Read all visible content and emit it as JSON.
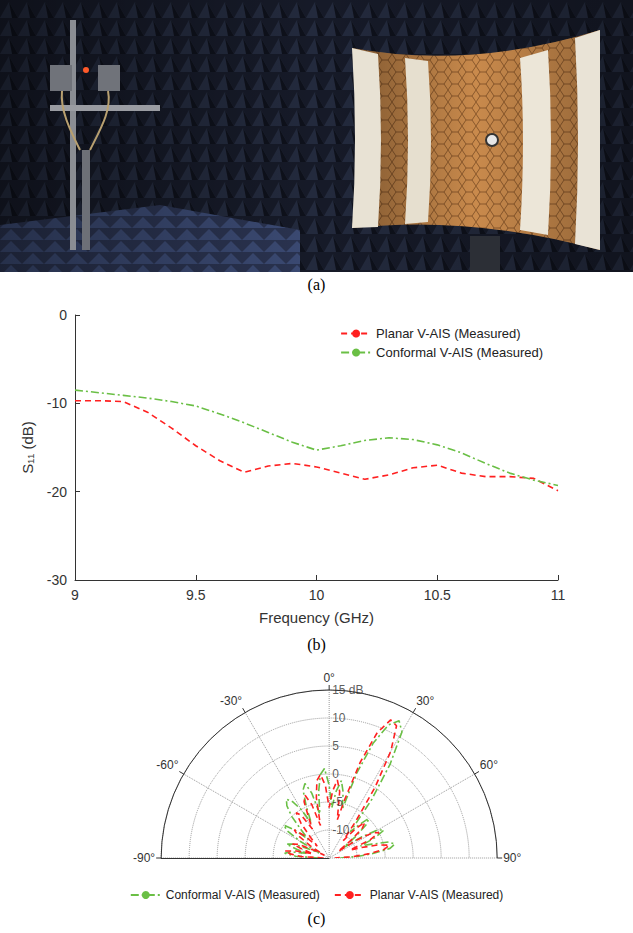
{
  "panel_labels": [
    "(a)",
    "(b)",
    "(c)"
  ],
  "chart_data": [
    {
      "type": "line",
      "xlabel": "Frequency (GHz)",
      "ylabel": "S₁₁ (dB)",
      "x": [
        9,
        9.1,
        9.2,
        9.3,
        9.4,
        9.5,
        9.6,
        9.7,
        9.8,
        9.9,
        10,
        10.1,
        10.2,
        10.3,
        10.4,
        10.5,
        10.6,
        10.7,
        10.8,
        10.9,
        11
      ],
      "series": [
        {
          "name": "Planar V-AIS (Measured)",
          "color": "#ff2020",
          "line_style": "dashed",
          "values": [
            -9.7,
            -9.7,
            -9.8,
            -11.0,
            -12.8,
            -14.8,
            -16.5,
            -17.8,
            -17.1,
            -16.8,
            -17.2,
            -17.9,
            -18.6,
            -18.1,
            -17.3,
            -17.0,
            -17.9,
            -18.3,
            -18.3,
            -18.5,
            -19.9
          ]
        },
        {
          "name": "Conformal V-AIS (Measured)",
          "color": "#6abf45",
          "line_style": "dashdot",
          "values": [
            -8.5,
            -8.8,
            -9.1,
            -9.4,
            -9.8,
            -10.3,
            -11.2,
            -12.2,
            -13.3,
            -14.4,
            -15.3,
            -14.8,
            -14.2,
            -13.9,
            -14.1,
            -14.7,
            -15.6,
            -16.8,
            -17.9,
            -18.7,
            -19.3
          ]
        }
      ],
      "xlim": [
        9,
        11
      ],
      "xticks": [
        9,
        9.5,
        10,
        10.5,
        11
      ],
      "ylim": [
        -30,
        0
      ],
      "yticks": [
        -30,
        -20,
        -10,
        0
      ],
      "grid": false,
      "legend": "upper right"
    },
    {
      "type": "polar",
      "x": [
        -90,
        -87,
        -84,
        -81,
        -78,
        -75,
        -72,
        -69,
        -66,
        -63,
        -60,
        -57,
        -54,
        -51,
        -48,
        -45,
        -42,
        -39,
        -36,
        -33,
        -30,
        -27,
        -24,
        -21,
        -18,
        -15,
        -12,
        -9,
        -6,
        -3,
        0,
        3,
        6,
        9,
        12,
        15,
        18,
        21,
        24,
        27,
        30,
        33,
        36,
        39,
        42,
        45,
        48,
        51,
        54,
        57,
        60,
        63,
        66,
        69,
        72,
        75,
        78,
        81,
        84,
        87,
        90
      ],
      "series": [
        {
          "name": "Conformal V-AIS (Measured)",
          "color": "#6abf45",
          "line_style": "dashdot",
          "values": [
            -13,
            -9,
            -7,
            -8,
            -11,
            -9,
            -7,
            -8,
            -11,
            -13,
            -9,
            -6,
            -5,
            -7,
            -10,
            -8,
            -5,
            -3,
            -2,
            -3,
            -5,
            -8,
            -5,
            -2,
            -1,
            -3,
            -7,
            -3,
            0,
            1,
            -2,
            -6,
            -3,
            -1,
            -3,
            -6,
            1,
            7,
            11,
            12.5,
            11,
            5,
            -2,
            -9,
            -7,
            -5,
            -6,
            -9,
            -12,
            -8,
            -5,
            -4,
            -6,
            -9,
            -7,
            -4,
            -3,
            -4,
            -7,
            -10,
            -13
          ]
        },
        {
          "name": "Planar V-AIS (Measured)",
          "color": "#ff2020",
          "line_style": "dashed",
          "values": [
            -14,
            -10,
            -8,
            -7,
            -9,
            -12,
            -10,
            -8,
            -9,
            -12,
            -14,
            -11,
            -8,
            -7,
            -9,
            -12,
            -10,
            -7,
            -5,
            -6,
            -9,
            -7,
            -4,
            -3,
            -5,
            -9,
            -4,
            -1,
            0,
            -2,
            -6,
            -3,
            -1,
            -3,
            -8,
            -4,
            3,
            9,
            12,
            11.5,
            7,
            0,
            -7,
            -11,
            -8,
            -6,
            -7,
            -10,
            -13,
            -9,
            -6,
            -5,
            -7,
            -11,
            -9,
            -6,
            -4,
            -5,
            -8,
            -11,
            -14
          ]
        }
      ],
      "xlim": [
        -90,
        90
      ],
      "xticks": [
        {
          "value": -90,
          "label": "-90°"
        },
        {
          "value": -60,
          "label": "-60°"
        },
        {
          "value": -30,
          "label": "-30°"
        },
        {
          "value": 0,
          "label": "0°"
        },
        {
          "value": 30,
          "label": "30°"
        },
        {
          "value": 60,
          "label": "60°"
        },
        {
          "value": 90,
          "label": "90°"
        }
      ],
      "ylim": [
        -15,
        15
      ],
      "yticks": [
        -10,
        -5,
        0,
        5,
        10,
        {
          "value": 15,
          "label": "15 dB"
        }
      ],
      "grid": true,
      "legend": "bottom"
    }
  ]
}
